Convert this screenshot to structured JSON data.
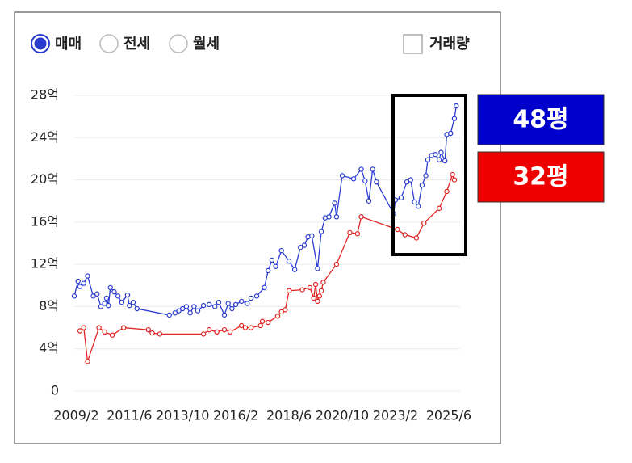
{
  "controls": {
    "options": [
      "매매",
      "전세",
      "월세"
    ],
    "checkbox": "거래량"
  },
  "chart_data": {
    "type": "line",
    "xlim": [
      "2009/1",
      "2025/12"
    ],
    "xticks": [
      "2009/2",
      "2011/6",
      "2013/10",
      "2016/2",
      "2018/6",
      "2020/10",
      "2023/2",
      "2025/6"
    ],
    "ylim": [
      0,
      28
    ],
    "yticks": [
      0,
      {
        "value": 4,
        "label": "4억"
      },
      {
        "value": 8,
        "label": "8억"
      },
      {
        "value": 12,
        "label": "12억"
      },
      {
        "value": 16,
        "label": "16억"
      },
      {
        "value": 20,
        "label": "20억"
      },
      {
        "value": 24,
        "label": "24억"
      },
      {
        "value": 28,
        "label": "28억"
      }
    ],
    "grid": true,
    "series": [
      {
        "name": "48평",
        "color": "#2a3bd0",
        "legend_color": "#0000cc",
        "x": [
          "2009/1",
          "2009/3",
          "2009/4",
          "2009/6",
          "2009/8",
          "2009/11",
          "2010/1",
          "2010/3",
          "2010/5",
          "2010/6",
          "2010/7",
          "2010/8",
          "2010/10",
          "2010/12",
          "2011/2",
          "2011/5",
          "2011/6",
          "2011/8",
          "2011/10",
          "2013/3",
          "2013/6",
          "2013/8",
          "2013/10",
          "2013/12",
          "2014/2",
          "2014/4",
          "2014/6",
          "2014/9",
          "2014/12",
          "2015/3",
          "2015/5",
          "2015/8",
          "2015/10",
          "2015/12",
          "2016/2",
          "2016/5",
          "2016/8",
          "2016/10",
          "2017/1",
          "2017/5",
          "2017/7",
          "2017/9",
          "2017/11",
          "2018/2",
          "2018/6",
          "2018/9",
          "2018/12",
          "2019/2",
          "2019/4",
          "2019/6",
          "2019/9",
          "2019/11",
          "2020/1",
          "2020/3",
          "2020/6",
          "2020/7",
          "2020/10",
          "2021/4",
          "2021/8",
          "2021/10",
          "2021/12",
          "2022/2",
          "2022/4",
          "2023/1",
          "2023/2",
          "2023/5",
          "2023/8",
          "2023/10",
          "2023/12",
          "2024/2",
          "2024/4",
          "2024/6",
          "2024/7",
          "2024/9",
          "2024/11",
          "2025/1",
          "2025/2",
          "2025/4",
          "2025/5",
          "2025/7",
          "2025/9",
          "2025/10"
        ],
        "values": [
          9.0,
          10.4,
          9.9,
          10.2,
          10.9,
          9.0,
          9.2,
          8.0,
          8.3,
          8.8,
          8.1,
          9.8,
          9.4,
          9.0,
          8.4,
          9.1,
          8.1,
          8.4,
          7.8,
          7.2,
          7.4,
          7.6,
          7.8,
          8.0,
          7.4,
          8.0,
          7.6,
          8.1,
          8.2,
          8.0,
          8.4,
          7.2,
          8.3,
          7.8,
          8.2,
          8.5,
          8.3,
          8.8,
          9.0,
          9.8,
          11.4,
          12.4,
          11.8,
          13.3,
          12.3,
          11.5,
          13.6,
          13.8,
          14.6,
          14.7,
          11.6,
          15.1,
          16.4,
          16.5,
          17.8,
          16.5,
          20.4,
          20.1,
          21.0,
          19.9,
          18.0,
          21.0,
          19.8,
          16.8,
          18.1,
          18.3,
          19.8,
          20.0,
          17.9,
          17.5,
          19.5,
          20.4,
          21.9,
          22.3,
          22.4,
          21.9,
          22.6,
          21.8,
          24.3,
          24.4,
          25.8,
          27.0
        ]
      },
      {
        "name": "32평",
        "color": "#e02424",
        "legend_color": "#ee0000",
        "x": [
          "2009/4",
          "2009/6",
          "2009/8",
          "2010/2",
          "2010/5",
          "2010/9",
          "2011/3",
          "2012/4",
          "2012/6",
          "2012/10",
          "2014/9",
          "2014/12",
          "2015/4",
          "2015/8",
          "2015/11",
          "2016/5",
          "2016/7",
          "2016/10",
          "2017/3",
          "2017/4",
          "2017/7",
          "2017/12",
          "2018/2",
          "2018/4",
          "2018/6",
          "2019/1",
          "2019/5",
          "2019/7",
          "2019/8",
          "2019/9",
          "2019/10",
          "2019/11",
          "2019/12",
          "2020/7",
          "2021/2",
          "2021/6",
          "2021/8",
          "2023/3",
          "2023/7",
          "2024/1",
          "2024/5",
          "2025/1",
          "2025/5",
          "2025/8",
          "2025/9"
        ],
        "values": [
          5.7,
          6.0,
          2.8,
          6.0,
          5.6,
          5.3,
          6.0,
          5.8,
          5.5,
          5.4,
          5.4,
          5.8,
          5.6,
          5.8,
          5.6,
          6.2,
          6.0,
          6.0,
          6.2,
          6.6,
          6.5,
          7.1,
          7.5,
          7.7,
          9.5,
          9.6,
          9.8,
          8.8,
          10.1,
          8.5,
          9.0,
          9.5,
          10.3,
          12.0,
          15.0,
          14.9,
          16.5,
          15.3,
          14.8,
          14.5,
          15.9,
          17.3,
          18.9,
          20.5,
          20.0
        ]
      }
    ]
  }
}
